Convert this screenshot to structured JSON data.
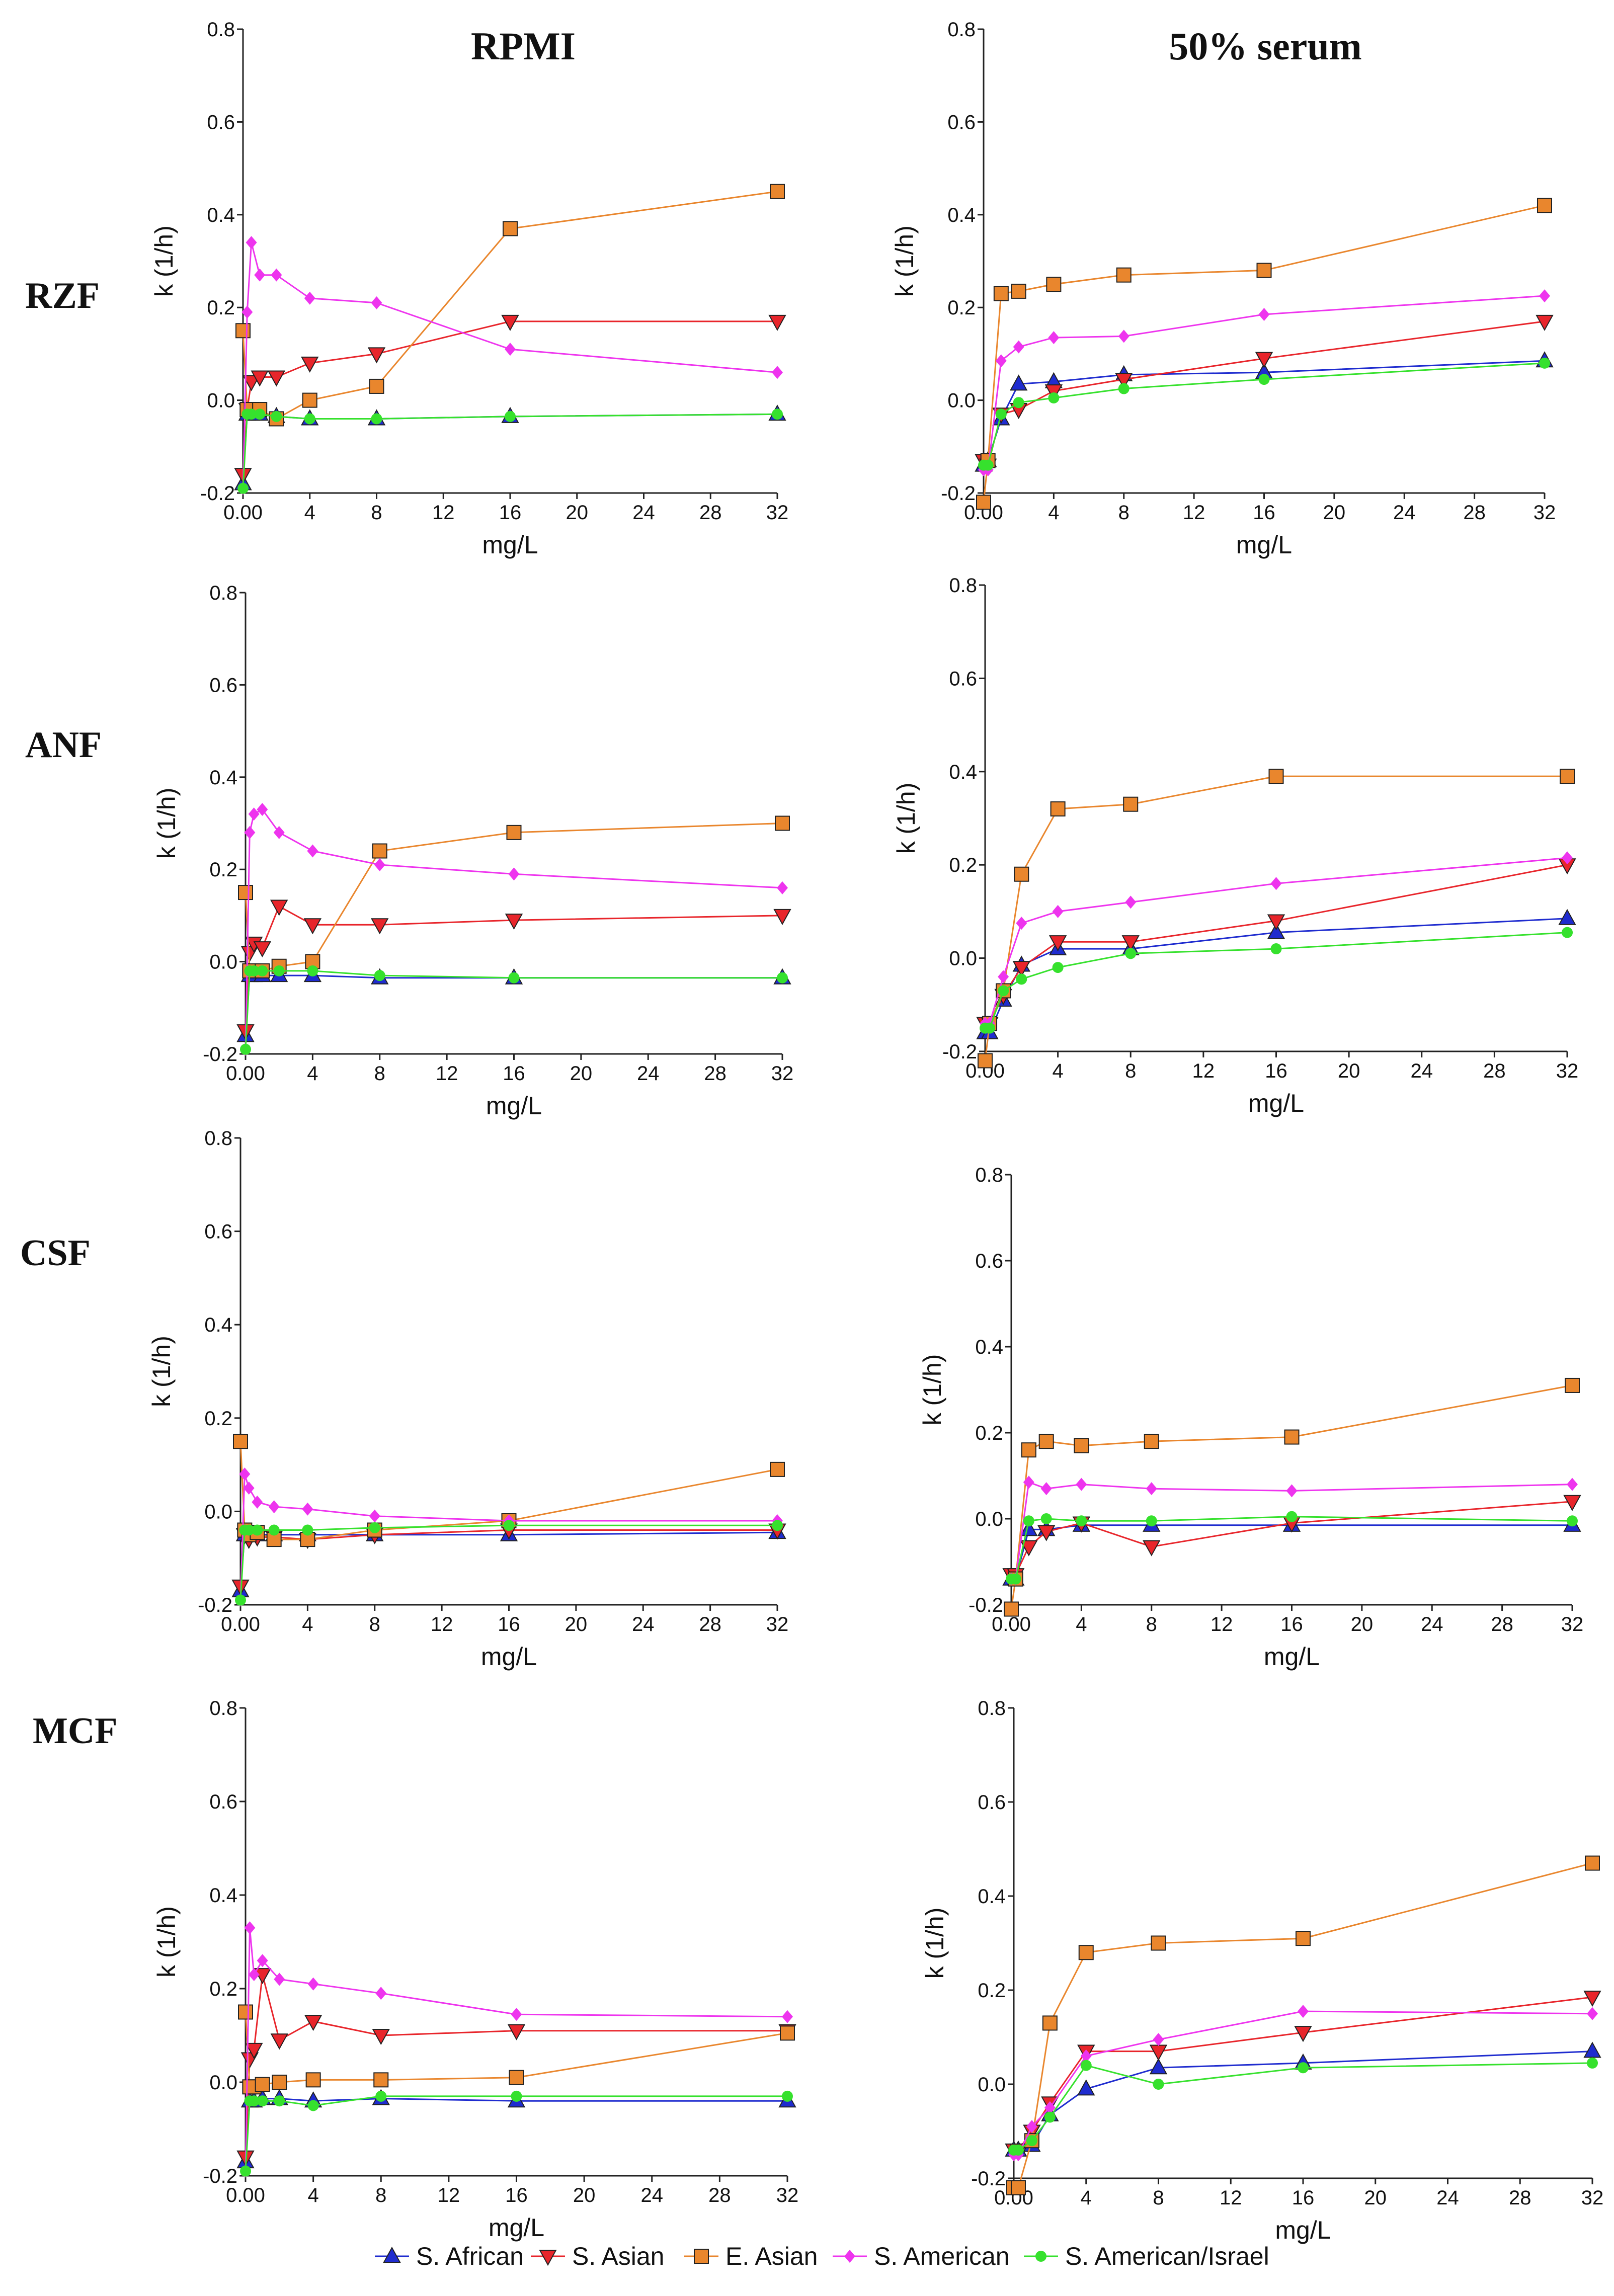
{
  "figure": {
    "col_titles": [
      "RPMI",
      "50% serum"
    ],
    "row_labels": [
      "RZF",
      "ANF",
      "CSF",
      "MCF"
    ]
  },
  "styles": {
    "S. African": {
      "color": "#1f2ccf",
      "marker": "triangle"
    },
    "S. Asian": {
      "color": "#e8252b",
      "marker": "triangle-down"
    },
    "E. Asian": {
      "color": "#e9862d",
      "marker": "square"
    },
    "S. American": {
      "color": "#ee34ee",
      "marker": "diamond"
    },
    "S. American/Israel": {
      "color": "#36e12d",
      "marker": "circle"
    }
  },
  "legend": {
    "position": "bottom-center",
    "entries": [
      "S. African",
      "S. Asian",
      "E. Asian",
      "S. American",
      "S. American/Israel"
    ]
  },
  "chart_data": [
    {
      "type": "line",
      "row": "RZF",
      "column": "RPMI",
      "xlabel": "mg/L",
      "ylabel": "k (1/h)",
      "xlim": [
        0,
        32
      ],
      "ylim": [
        -0.2,
        0.8
      ],
      "xticks": [
        "0.00",
        "4",
        "8",
        "12",
        "16",
        "20",
        "24",
        "28",
        "32"
      ],
      "yticks": [
        "-0.2",
        "0.0",
        "0.2",
        "0.4",
        "0.6",
        "0.8"
      ],
      "x": [
        0,
        0.25,
        0.5,
        1,
        2,
        4,
        8,
        16,
        32
      ],
      "series": [
        {
          "name": "S. African",
          "values": [
            -0.18,
            -0.03,
            -0.03,
            -0.03,
            -0.035,
            -0.04,
            -0.04,
            -0.035,
            -0.03
          ]
        },
        {
          "name": "S. Asian",
          "values": [
            -0.16,
            -0.02,
            0.04,
            0.05,
            0.05,
            0.08,
            0.1,
            0.17,
            0.17
          ]
        },
        {
          "name": "E. Asian",
          "values": [
            0.15,
            -0.02,
            -0.02,
            -0.02,
            -0.04,
            0.0,
            0.03,
            0.37,
            0.45
          ]
        },
        {
          "name": "S. American",
          "values": [
            -0.19,
            0.19,
            0.34,
            0.27,
            0.27,
            0.22,
            0.21,
            0.11,
            0.06
          ]
        },
        {
          "name": "S. American/Israel",
          "values": [
            -0.19,
            -0.03,
            -0.03,
            -0.03,
            -0.035,
            -0.04,
            -0.04,
            -0.035,
            -0.03
          ]
        }
      ]
    },
    {
      "type": "line",
      "row": "RZF",
      "column": "50% serum",
      "xlabel": "mg/L",
      "ylabel": "k (1/h)",
      "xlim": [
        0,
        32
      ],
      "ylim": [
        -0.2,
        0.8
      ],
      "xticks": [
        "0.00",
        "4",
        "8",
        "12",
        "16",
        "20",
        "24",
        "28",
        "32"
      ],
      "yticks": [
        "-0.2",
        "0.0",
        "0.2",
        "0.4",
        "0.6",
        "0.8"
      ],
      "x": [
        0,
        0.25,
        1,
        2,
        4,
        8,
        16,
        32
      ],
      "series": [
        {
          "name": "S. African",
          "values": [
            -0.14,
            -0.13,
            -0.04,
            0.035,
            0.04,
            0.055,
            0.06,
            0.085
          ]
        },
        {
          "name": "S. Asian",
          "values": [
            -0.13,
            -0.14,
            -0.03,
            -0.02,
            0.02,
            0.045,
            0.09,
            0.17
          ]
        },
        {
          "name": "E. Asian",
          "values": [
            -0.22,
            -0.13,
            0.23,
            0.235,
            0.25,
            0.27,
            0.28,
            0.42
          ]
        },
        {
          "name": "S. American",
          "values": [
            -0.15,
            -0.15,
            0.085,
            0.115,
            0.135,
            0.138,
            0.185,
            0.225
          ]
        },
        {
          "name": "S. American/Israel",
          "values": [
            -0.14,
            -0.14,
            -0.03,
            -0.005,
            0.005,
            0.025,
            0.045,
            0.08
          ]
        }
      ]
    },
    {
      "type": "line",
      "row": "ANF",
      "column": "RPMI",
      "xlabel": "mg/L",
      "ylabel": "k (1/h)",
      "xlim": [
        0,
        32
      ],
      "ylim": [
        -0.2,
        0.8
      ],
      "xticks": [
        "0.00",
        "4",
        "8",
        "12",
        "16",
        "20",
        "24",
        "28",
        "32"
      ],
      "yticks": [
        "-0.2",
        "0.0",
        "0.2",
        "0.4",
        "0.6",
        "0.8"
      ],
      "x": [
        0,
        0.25,
        0.5,
        1,
        2,
        4,
        8,
        16,
        32
      ],
      "series": [
        {
          "name": "S. African",
          "values": [
            -0.16,
            -0.03,
            -0.03,
            -0.03,
            -0.03,
            -0.03,
            -0.035,
            -0.035,
            -0.035
          ]
        },
        {
          "name": "S. Asian",
          "values": [
            -0.15,
            0.02,
            0.04,
            0.03,
            0.12,
            0.08,
            0.08,
            0.09,
            0.1
          ]
        },
        {
          "name": "E. Asian",
          "values": [
            0.15,
            -0.02,
            -0.02,
            -0.02,
            -0.01,
            0.0,
            0.24,
            0.28,
            0.3
          ]
        },
        {
          "name": "S. American",
          "values": [
            -0.19,
            0.28,
            0.32,
            0.33,
            0.28,
            0.24,
            0.21,
            0.19,
            0.16
          ]
        },
        {
          "name": "S. American/Israel",
          "values": [
            -0.19,
            -0.02,
            -0.02,
            -0.02,
            -0.02,
            -0.02,
            -0.03,
            -0.035,
            -0.035
          ]
        }
      ]
    },
    {
      "type": "line",
      "row": "ANF",
      "column": "50% serum",
      "xlabel": "mg/L",
      "ylabel": "k (1/h)",
      "xlim": [
        0,
        32
      ],
      "ylim": [
        -0.2,
        0.8
      ],
      "xticks": [
        "0.00",
        "4",
        "8",
        "12",
        "16",
        "20",
        "24",
        "28",
        "32"
      ],
      "yticks": [
        "-0.2",
        "0.0",
        "0.2",
        "0.4",
        "0.6",
        "0.8"
      ],
      "x": [
        0,
        0.25,
        1,
        2,
        4,
        8,
        16,
        32
      ],
      "series": [
        {
          "name": "S. African",
          "values": [
            -0.16,
            -0.16,
            -0.09,
            -0.015,
            0.02,
            0.02,
            0.055,
            0.085
          ]
        },
        {
          "name": "S. Asian",
          "values": [
            -0.14,
            -0.14,
            -0.08,
            -0.02,
            0.035,
            0.035,
            0.08,
            0.2
          ]
        },
        {
          "name": "E. Asian",
          "values": [
            -0.22,
            -0.14,
            -0.07,
            0.18,
            0.32,
            0.33,
            0.39,
            0.39
          ]
        },
        {
          "name": "S. American",
          "values": [
            -0.14,
            -0.14,
            -0.04,
            0.075,
            0.1,
            0.12,
            0.16,
            0.215
          ]
        },
        {
          "name": "S. American/Israel",
          "values": [
            -0.15,
            -0.15,
            -0.07,
            -0.045,
            -0.02,
            0.01,
            0.02,
            0.055
          ]
        }
      ]
    },
    {
      "type": "line",
      "row": "CSF",
      "column": "RPMI",
      "xlabel": "mg/L",
      "ylabel": "k (1/h)",
      "xlim": [
        0,
        32
      ],
      "ylim": [
        -0.2,
        0.8
      ],
      "xticks": [
        "0.00",
        "4",
        "8",
        "12",
        "16",
        "20",
        "24",
        "28",
        "32"
      ],
      "yticks": [
        "-0.2",
        "0.0",
        "0.2",
        "0.4",
        "0.6",
        "0.8"
      ],
      "x": [
        0,
        0.25,
        0.5,
        1,
        2,
        4,
        8,
        16,
        32
      ],
      "series": [
        {
          "name": "S. African",
          "values": [
            -0.17,
            -0.05,
            -0.05,
            -0.05,
            -0.05,
            -0.05,
            -0.05,
            -0.05,
            -0.045
          ]
        },
        {
          "name": "S. Asian",
          "values": [
            -0.16,
            -0.05,
            -0.06,
            -0.055,
            -0.055,
            -0.06,
            -0.05,
            -0.04,
            -0.04
          ]
        },
        {
          "name": "E. Asian",
          "values": [
            0.15,
            -0.04,
            -0.05,
            -0.045,
            -0.06,
            -0.06,
            -0.04,
            -0.02,
            0.09
          ]
        },
        {
          "name": "S. American",
          "values": [
            -0.19,
            0.08,
            0.05,
            0.02,
            0.01,
            0.005,
            -0.01,
            -0.02,
            -0.02
          ]
        },
        {
          "name": "S. American/Israel",
          "values": [
            -0.19,
            -0.04,
            -0.04,
            -0.04,
            -0.04,
            -0.04,
            -0.035,
            -0.03,
            -0.03
          ]
        }
      ]
    },
    {
      "type": "line",
      "row": "CSF",
      "column": "50% serum",
      "xlabel": "mg/L",
      "ylabel": "k (1/h)",
      "xlim": [
        0,
        32
      ],
      "ylim": [
        -0.2,
        0.8
      ],
      "xticks": [
        "0.00",
        "4",
        "8",
        "12",
        "16",
        "20",
        "24",
        "28",
        "32"
      ],
      "yticks": [
        "-0.2",
        "0.0",
        "0.2",
        "0.4",
        "0.6",
        "0.8"
      ],
      "x": [
        0,
        0.25,
        1,
        2,
        4,
        8,
        16,
        32
      ],
      "series": [
        {
          "name": "S. African",
          "values": [
            -0.14,
            -0.14,
            -0.025,
            -0.025,
            -0.015,
            -0.015,
            -0.015,
            -0.015
          ]
        },
        {
          "name": "S. Asian",
          "values": [
            -0.13,
            -0.13,
            -0.065,
            -0.03,
            -0.01,
            -0.065,
            -0.01,
            0.04
          ]
        },
        {
          "name": "E. Asian",
          "values": [
            -0.21,
            -0.14,
            0.16,
            0.18,
            0.17,
            0.18,
            0.19,
            0.31
          ]
        },
        {
          "name": "S. American",
          "values": [
            -0.14,
            -0.14,
            0.085,
            0.07,
            0.08,
            0.07,
            0.065,
            0.08
          ]
        },
        {
          "name": "S. American/Israel",
          "values": [
            -0.14,
            -0.14,
            -0.005,
            0.0,
            -0.005,
            -0.005,
            0.005,
            -0.005
          ]
        }
      ]
    },
    {
      "type": "line",
      "row": "MCF",
      "column": "RPMI",
      "xlabel": "mg/L",
      "ylabel": "k (1/h)",
      "xlim": [
        0,
        32
      ],
      "ylim": [
        -0.2,
        0.8
      ],
      "xticks": [
        "0.00",
        "4",
        "8",
        "12",
        "16",
        "20",
        "24",
        "28",
        "32"
      ],
      "yticks": [
        "-0.2",
        "0.0",
        "0.2",
        "0.4",
        "0.6",
        "0.8"
      ],
      "x": [
        0,
        0.25,
        0.5,
        1,
        2,
        4,
        8,
        16,
        32
      ],
      "series": [
        {
          "name": "S. African",
          "values": [
            -0.17,
            -0.04,
            -0.04,
            -0.035,
            -0.035,
            -0.04,
            -0.035,
            -0.04,
            -0.04
          ]
        },
        {
          "name": "S. Asian",
          "values": [
            -0.16,
            0.05,
            0.07,
            0.23,
            0.09,
            0.13,
            0.1,
            0.11,
            0.11
          ]
        },
        {
          "name": "E. Asian",
          "values": [
            0.15,
            -0.01,
            -0.01,
            -0.005,
            0.0,
            0.005,
            0.005,
            0.01,
            0.105
          ]
        },
        {
          "name": "S. American",
          "values": [
            -0.19,
            0.33,
            0.23,
            0.26,
            0.22,
            0.21,
            0.19,
            0.145,
            0.14
          ]
        },
        {
          "name": "S. American/Israel",
          "values": [
            -0.19,
            -0.04,
            -0.04,
            -0.04,
            -0.04,
            -0.05,
            -0.03,
            -0.03,
            -0.03
          ]
        }
      ]
    },
    {
      "type": "line",
      "row": "MCF",
      "column": "50% serum",
      "xlabel": "mg/L",
      "ylabel": "k (1/h)",
      "xlim": [
        0,
        32
      ],
      "ylim": [
        -0.2,
        0.8
      ],
      "xticks": [
        "0.00",
        "4",
        "8",
        "12",
        "16",
        "20",
        "24",
        "28",
        "32"
      ],
      "yticks": [
        "-0.2",
        "0.0",
        "0.2",
        "0.4",
        "0.6",
        "0.8"
      ],
      "x": [
        0,
        0.25,
        1,
        2,
        4,
        8,
        16,
        32
      ],
      "series": [
        {
          "name": "S. African",
          "values": [
            -0.14,
            -0.14,
            -0.13,
            -0.065,
            -0.01,
            0.035,
            0.045,
            0.07
          ]
        },
        {
          "name": "S. Asian",
          "values": [
            -0.14,
            -0.14,
            -0.1,
            -0.04,
            0.07,
            0.07,
            0.11,
            0.185
          ]
        },
        {
          "name": "E. Asian",
          "values": [
            -0.22,
            -0.22,
            -0.12,
            0.13,
            0.28,
            0.3,
            0.31,
            0.47
          ]
        },
        {
          "name": "S. American",
          "values": [
            -0.15,
            -0.15,
            -0.09,
            -0.05,
            0.06,
            0.095,
            0.155,
            0.15
          ]
        },
        {
          "name": "S. American/Israel",
          "values": [
            -0.14,
            -0.14,
            -0.12,
            -0.07,
            0.04,
            0.0,
            0.035,
            0.045
          ]
        }
      ]
    }
  ]
}
